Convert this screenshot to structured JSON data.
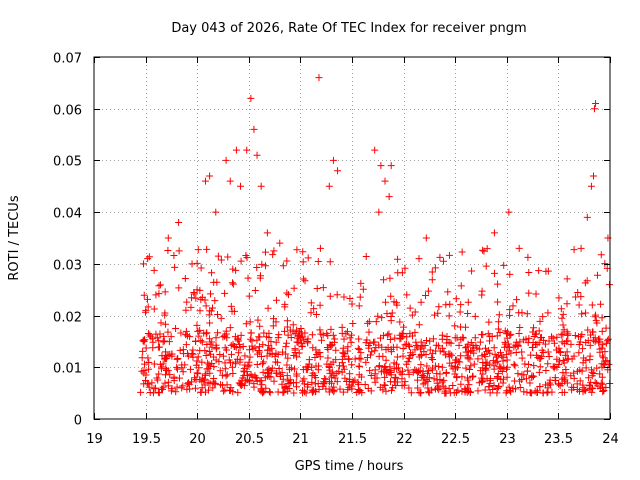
{
  "chart_data": {
    "type": "scatter",
    "title": "Day 043 of 2026, Rate Of TEC Index for receiver pngm",
    "xlabel": "GPS time / hours",
    "ylabel": "ROTI / TECUs",
    "xlim": [
      19,
      24
    ],
    "ylim": [
      0,
      0.07
    ],
    "x_ticks": [
      19,
      19.5,
      20,
      20.5,
      21,
      21.5,
      22,
      22.5,
      23,
      23.5,
      24
    ],
    "x_tick_labels": [
      "19",
      "19.5",
      "20",
      "20.5",
      "21",
      "21.5",
      "22",
      "22.5",
      "23",
      "23.5",
      "24"
    ],
    "y_ticks": [
      0,
      0.01,
      0.02,
      0.03,
      0.04,
      0.05,
      0.06,
      0.07
    ],
    "y_tick_labels": [
      "0",
      "0.01",
      "0.02",
      "0.03",
      "0.04",
      "0.05",
      "0.06",
      "0.07"
    ],
    "grid": true,
    "marker": "+",
    "series": [
      {
        "name": "ROTI",
        "color": "#ff0000",
        "data_range": [
          19.45,
          24.0
        ],
        "typical_band": [
          0.004,
          0.025
        ],
        "points": [
          [
            19.48,
            0.03
          ],
          [
            19.52,
            0.031
          ],
          [
            19.6,
            0.024
          ],
          [
            19.72,
            0.035
          ],
          [
            19.82,
            0.038
          ],
          [
            19.95,
            0.03
          ],
          [
            20.08,
            0.046
          ],
          [
            20.12,
            0.047
          ],
          [
            20.18,
            0.04
          ],
          [
            20.28,
            0.05
          ],
          [
            20.32,
            0.046
          ],
          [
            20.38,
            0.052
          ],
          [
            20.42,
            0.045
          ],
          [
            20.48,
            0.052
          ],
          [
            20.52,
            0.062
          ],
          [
            20.55,
            0.056
          ],
          [
            20.58,
            0.051
          ],
          [
            20.62,
            0.045
          ],
          [
            20.68,
            0.036
          ],
          [
            20.8,
            0.034
          ],
          [
            21.18,
            0.066
          ],
          [
            21.28,
            0.045
          ],
          [
            21.32,
            0.05
          ],
          [
            21.36,
            0.048
          ],
          [
            21.72,
            0.052
          ],
          [
            21.78,
            0.049
          ],
          [
            21.82,
            0.046
          ],
          [
            21.86,
            0.043
          ],
          [
            21.88,
            0.049
          ],
          [
            21.76,
            0.04
          ],
          [
            22.22,
            0.035
          ],
          [
            22.88,
            0.036
          ],
          [
            23.02,
            0.04
          ],
          [
            23.12,
            0.033
          ],
          [
            23.72,
            0.033
          ],
          [
            23.78,
            0.039
          ],
          [
            23.82,
            0.045
          ],
          [
            23.84,
            0.047
          ],
          [
            23.85,
            0.06
          ],
          [
            23.86,
            0.061
          ],
          [
            23.98,
            0.035
          ]
        ]
      }
    ]
  }
}
